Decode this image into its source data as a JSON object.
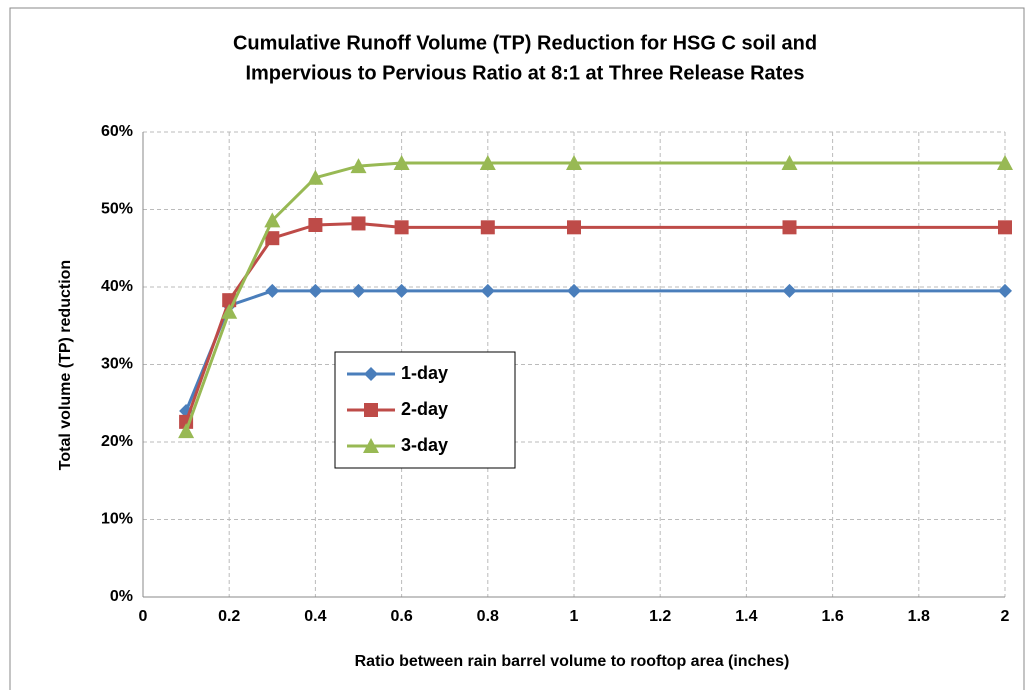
{
  "chart_data": {
    "type": "line",
    "title": "Cumulative Runoff Volume (TP) Reduction for HSG C soil  and",
    "subtitle": "Impervious to Pervious Ratio at 8:1 at Three Release Rates",
    "x_label": "Ratio between rain barrel volume to rooftop area (inches)",
    "y_label": "Total volume (TP) reduction",
    "x": [
      0.1,
      0.2,
      0.3,
      0.4,
      0.5,
      0.6,
      0.8,
      1,
      1.5,
      2
    ],
    "series": [
      {
        "name": "1-day",
        "color": "#4a7ebb",
        "marker": "diamond",
        "values": [
          24,
          37.6,
          39.5,
          39.5,
          39.5,
          39.5,
          39.5,
          39.5,
          39.5,
          39.5
        ]
      },
      {
        "name": "2-day",
        "color": "#be4b48",
        "marker": "square",
        "values": [
          22.6,
          38.3,
          46.3,
          48,
          48.2,
          47.7,
          47.7,
          47.7,
          47.7,
          47.7
        ]
      },
      {
        "name": "3-day",
        "color": "#98b954",
        "marker": "triangle",
        "values": [
          21.4,
          36.8,
          48.6,
          54.1,
          55.6,
          56,
          56,
          56,
          56,
          56
        ]
      }
    ],
    "xlim": [
      0,
      2
    ],
    "xticks": [
      0,
      0.2,
      0.4,
      0.6,
      0.8,
      1,
      1.2,
      1.4,
      1.6,
      1.8,
      2
    ],
    "ylim": [
      0,
      60
    ],
    "yticks": [
      {
        "value": 0,
        "label": "0%"
      },
      {
        "value": 10,
        "label": "10%"
      },
      {
        "value": 20,
        "label": "20%"
      },
      {
        "value": 30,
        "label": "30%"
      },
      {
        "value": 40,
        "label": "40%"
      },
      {
        "value": 50,
        "label": "50%"
      },
      {
        "value": 60,
        "label": "60%"
      }
    ],
    "grid": true,
    "legend": "center-left"
  }
}
